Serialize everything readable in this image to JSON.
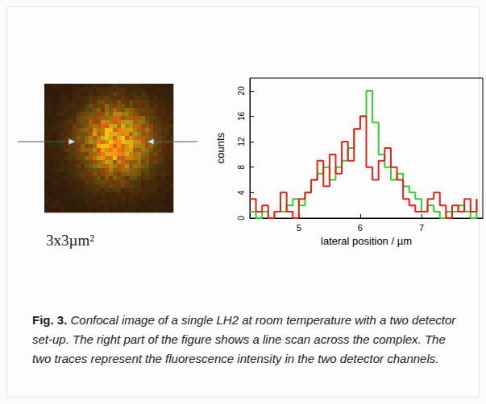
{
  "image": {
    "label": "3x3µm²"
  },
  "chart_data": {
    "type": "line",
    "line_style": "step",
    "x": [
      4.2,
      4.3,
      4.4,
      4.5,
      4.6,
      4.7,
      4.8,
      4.9,
      5.0,
      5.1,
      5.2,
      5.3,
      5.4,
      5.5,
      5.6,
      5.7,
      5.8,
      5.9,
      6.0,
      6.1,
      6.2,
      6.3,
      6.4,
      6.5,
      6.6,
      6.7,
      6.8,
      6.9,
      7.0,
      7.1,
      7.2,
      7.3,
      7.4,
      7.5,
      7.6,
      7.7,
      7.8,
      7.9
    ],
    "series": [
      {
        "color": "#33cc33",
        "values": [
          1,
          0,
          1,
          0,
          1,
          1,
          2,
          3,
          2,
          4,
          6,
          7,
          8,
          6,
          8,
          9,
          11,
          14,
          16,
          20,
          15,
          10,
          8,
          6,
          7,
          5,
          4,
          3,
          1,
          2,
          1,
          0,
          1,
          1,
          2,
          1,
          0,
          3
        ]
      },
      {
        "color": "#e8201a",
        "values": [
          3,
          1,
          2,
          0,
          1,
          4,
          1,
          0,
          3,
          4,
          6,
          9,
          5,
          10,
          7,
          12,
          9,
          14,
          16,
          8,
          6,
          9,
          11,
          8,
          6,
          3,
          2,
          1,
          1,
          3,
          4,
          2,
          0,
          2,
          1,
          3,
          1,
          3
        ]
      }
    ],
    "xlabel": "lateral position / µm",
    "ylabel": "counts",
    "xlim": [
      4.2,
      8.0
    ],
    "xticks": [
      5,
      6,
      7
    ],
    "ylim": [
      0,
      22
    ],
    "yticks": [
      0,
      4,
      8,
      12,
      16,
      20
    ],
    "grid": false
  },
  "caption": {
    "label": "Fig. 3.",
    "text": "Confocal image of a single LH2 at room temperature with a two detector set-up. The right part of the figure shows a line scan across the complex. The two traces represent the fluorescence intensity in the two detector channels."
  }
}
